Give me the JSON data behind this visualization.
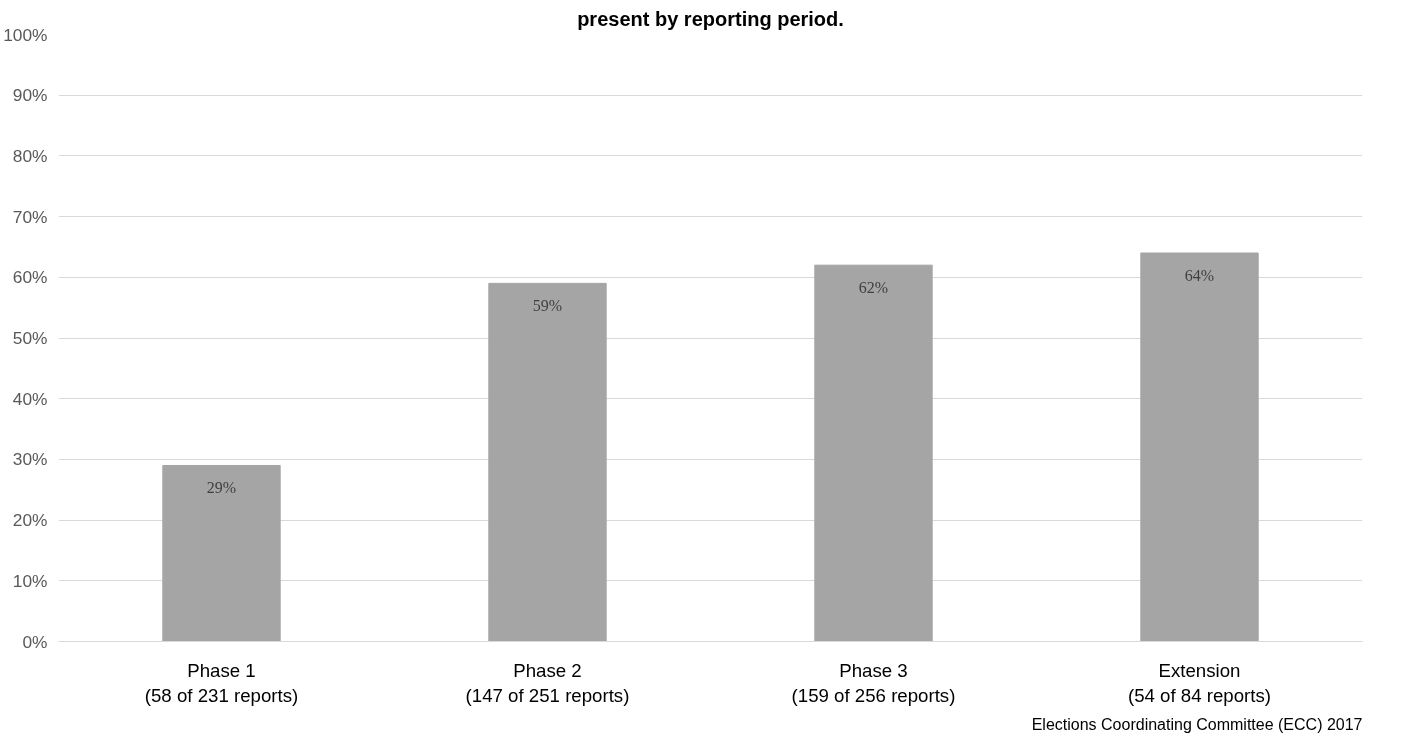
{
  "chart_data": {
    "type": "bar",
    "title": "present by reporting period.",
    "categories": [
      "Phase 1\n(58 of 231 reports)",
      "Phase 2\n(147 of 251 reports)",
      "Phase 3\n(159 of 256 reports)",
      "Extension\n(54 of 84 reports)"
    ],
    "values": [
      29,
      59,
      62,
      64
    ],
    "color": "#a5a5a5",
    "value_labels": [
      "29%",
      "59%",
      "62%",
      "64%"
    ],
    "ylim": [
      0,
      100
    ],
    "yticks": [
      {
        "value": 0,
        "label": "0%"
      },
      {
        "value": 10,
        "label": "10%"
      },
      {
        "value": 20,
        "label": "20%"
      },
      {
        "value": 30,
        "label": "30%"
      },
      {
        "value": 40,
        "label": "40%"
      },
      {
        "value": 50,
        "label": "50%"
      },
      {
        "value": 60,
        "label": "60%"
      },
      {
        "value": 70,
        "label": "70%"
      },
      {
        "value": 80,
        "label": "80%"
      },
      {
        "value": 90,
        "label": "90%"
      },
      {
        "value": 100,
        "label": "100%"
      }
    ],
    "grid": "y",
    "annotations": [
      "Elections Coordinating Committee (ECC) 2017"
    ]
  }
}
